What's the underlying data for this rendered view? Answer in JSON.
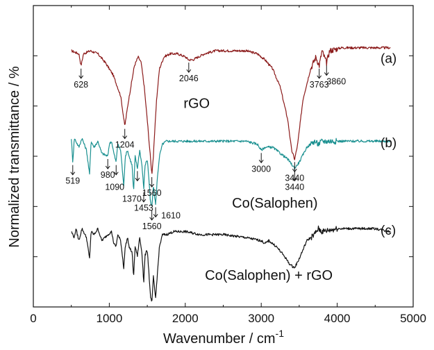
{
  "chart_data": {
    "type": "line",
    "xlabel": "Wavenumber / cm",
    "xlabel_superscript": "-1",
    "ylabel": "Normalized transmittance / %",
    "xlim": [
      0,
      5000
    ],
    "x_ticks": [
      "0",
      "1000",
      "2000",
      "3000",
      "4000",
      "5000"
    ],
    "y_tick_labels": "none",
    "legend": "none",
    "grid": false,
    "series": [
      {
        "name": "rGO",
        "panel": "(a)",
        "color": "#8b1a1a",
        "baseline": 0.85,
        "points": [
          [
            500,
            0.85
          ],
          [
            600,
            0.84
          ],
          [
            628,
            0.8
          ],
          [
            660,
            0.84
          ],
          [
            750,
            0.85
          ],
          [
            850,
            0.84
          ],
          [
            950,
            0.81
          ],
          [
            1050,
            0.77
          ],
          [
            1150,
            0.7
          ],
          [
            1204,
            0.6
          ],
          [
            1250,
            0.68
          ],
          [
            1330,
            0.8
          ],
          [
            1380,
            0.83
          ],
          [
            1420,
            0.81
          ],
          [
            1460,
            0.73
          ],
          [
            1500,
            0.62
          ],
          [
            1540,
            0.5
          ],
          [
            1560,
            0.44
          ],
          [
            1580,
            0.5
          ],
          [
            1620,
            0.68
          ],
          [
            1660,
            0.79
          ],
          [
            1720,
            0.83
          ],
          [
            1800,
            0.84
          ],
          [
            1900,
            0.84
          ],
          [
            2000,
            0.83
          ],
          [
            2046,
            0.82
          ],
          [
            2100,
            0.82
          ],
          [
            2250,
            0.84
          ],
          [
            2400,
            0.85
          ],
          [
            2600,
            0.85
          ],
          [
            2800,
            0.85
          ],
          [
            2950,
            0.84
          ],
          [
            3050,
            0.82
          ],
          [
            3150,
            0.79
          ],
          [
            3250,
            0.73
          ],
          [
            3350,
            0.62
          ],
          [
            3400,
            0.52
          ],
          [
            3440,
            0.49
          ],
          [
            3480,
            0.54
          ],
          [
            3550,
            0.69
          ],
          [
            3650,
            0.79
          ],
          [
            3720,
            0.83
          ],
          [
            3763,
            0.8
          ],
          [
            3800,
            0.85
          ],
          [
            3860,
            0.81
          ],
          [
            3900,
            0.85
          ],
          [
            4050,
            0.86
          ],
          [
            4200,
            0.86
          ],
          [
            4400,
            0.86
          ],
          [
            4600,
            0.86
          ],
          [
            4700,
            0.86
          ]
        ],
        "annotations": [
          {
            "text": "628",
            "x": 628
          },
          {
            "text": "1204",
            "x": 1204
          },
          {
            "text": "1560",
            "x": 1560
          },
          {
            "text": "2046",
            "x": 2046
          },
          {
            "text": "3440",
            "x": 3440
          },
          {
            "text": "3763",
            "x": 3763
          },
          {
            "text": "3860",
            "x": 3860
          }
        ]
      },
      {
        "name": "Co(Salophen)",
        "panel": "(b)",
        "color": "#1a9090",
        "baseline": 0.55,
        "points": [
          [
            500,
            0.56
          ],
          [
            519,
            0.48
          ],
          [
            540,
            0.56
          ],
          [
            600,
            0.53
          ],
          [
            640,
            0.56
          ],
          [
            700,
            0.52
          ],
          [
            740,
            0.44
          ],
          [
            760,
            0.55
          ],
          [
            800,
            0.53
          ],
          [
            850,
            0.55
          ],
          [
            900,
            0.51
          ],
          [
            980,
            0.5
          ],
          [
            1000,
            0.54
          ],
          [
            1030,
            0.55
          ],
          [
            1060,
            0.51
          ],
          [
            1090,
            0.48
          ],
          [
            1110,
            0.54
          ],
          [
            1150,
            0.52
          ],
          [
            1190,
            0.4
          ],
          [
            1210,
            0.5
          ],
          [
            1240,
            0.52
          ],
          [
            1260,
            0.5
          ],
          [
            1300,
            0.47
          ],
          [
            1320,
            0.38
          ],
          [
            1340,
            0.5
          ],
          [
            1370,
            0.46
          ],
          [
            1400,
            0.52
          ],
          [
            1430,
            0.47
          ],
          [
            1453,
            0.39
          ],
          [
            1470,
            0.47
          ],
          [
            1500,
            0.49
          ],
          [
            1520,
            0.43
          ],
          [
            1540,
            0.35
          ],
          [
            1560,
            0.33
          ],
          [
            1580,
            0.4
          ],
          [
            1600,
            0.36
          ],
          [
            1610,
            0.34
          ],
          [
            1630,
            0.42
          ],
          [
            1660,
            0.5
          ],
          [
            1700,
            0.54
          ],
          [
            1750,
            0.55
          ],
          [
            1850,
            0.55
          ],
          [
            2000,
            0.55
          ],
          [
            2200,
            0.55
          ],
          [
            2500,
            0.55
          ],
          [
            2800,
            0.55
          ],
          [
            2950,
            0.54
          ],
          [
            3000,
            0.52
          ],
          [
            3050,
            0.53
          ],
          [
            3150,
            0.53
          ],
          [
            3250,
            0.51
          ],
          [
            3350,
            0.49
          ],
          [
            3440,
            0.46
          ],
          [
            3500,
            0.48
          ],
          [
            3600,
            0.53
          ],
          [
            3700,
            0.55
          ],
          [
            3750,
            0.54
          ],
          [
            3800,
            0.55
          ],
          [
            4000,
            0.55
          ],
          [
            4300,
            0.55
          ],
          [
            4700,
            0.55
          ]
        ],
        "annotations": [
          {
            "text": "519",
            "x": 519
          },
          {
            "text": "980",
            "x": 980
          },
          {
            "text": "1090",
            "x": 1090
          },
          {
            "text": "1370",
            "x": 1370
          },
          {
            "text": "1453",
            "x": 1453
          },
          {
            "text": "1560",
            "x": 1560
          },
          {
            "text": "1610",
            "x": 1610
          },
          {
            "text": "3000",
            "x": 3000
          },
          {
            "text": "3440",
            "x": 3440
          }
        ]
      },
      {
        "name": "Co(Salophen) + rGO",
        "panel": "(c)",
        "color": "#111111",
        "baseline": 0.26,
        "points": [
          [
            500,
            0.25
          ],
          [
            540,
            0.23
          ],
          [
            560,
            0.26
          ],
          [
            600,
            0.22
          ],
          [
            640,
            0.26
          ],
          [
            700,
            0.23
          ],
          [
            740,
            0.16
          ],
          [
            760,
            0.25
          ],
          [
            800,
            0.24
          ],
          [
            850,
            0.26
          ],
          [
            900,
            0.22
          ],
          [
            980,
            0.24
          ],
          [
            1030,
            0.25
          ],
          [
            1060,
            0.21
          ],
          [
            1090,
            0.2
          ],
          [
            1110,
            0.24
          ],
          [
            1150,
            0.22
          ],
          [
            1190,
            0.13
          ],
          [
            1210,
            0.2
          ],
          [
            1240,
            0.23
          ],
          [
            1260,
            0.2
          ],
          [
            1300,
            0.18
          ],
          [
            1320,
            0.1
          ],
          [
            1340,
            0.2
          ],
          [
            1370,
            0.17
          ],
          [
            1400,
            0.23
          ],
          [
            1430,
            0.18
          ],
          [
            1453,
            0.08
          ],
          [
            1470,
            0.17
          ],
          [
            1500,
            0.19
          ],
          [
            1520,
            0.12
          ],
          [
            1540,
            0.04
          ],
          [
            1560,
            0.01
          ],
          [
            1580,
            0.1
          ],
          [
            1600,
            0.05
          ],
          [
            1610,
            0.03
          ],
          [
            1630,
            0.1
          ],
          [
            1660,
            0.2
          ],
          [
            1700,
            0.24
          ],
          [
            1750,
            0.24
          ],
          [
            1850,
            0.25
          ],
          [
            2000,
            0.25
          ],
          [
            2200,
            0.24
          ],
          [
            2500,
            0.24
          ],
          [
            2800,
            0.23
          ],
          [
            3000,
            0.22
          ],
          [
            3050,
            0.21
          ],
          [
            3100,
            0.22
          ],
          [
            3200,
            0.2
          ],
          [
            3300,
            0.17
          ],
          [
            3380,
            0.14
          ],
          [
            3440,
            0.13
          ],
          [
            3500,
            0.16
          ],
          [
            3600,
            0.22
          ],
          [
            3700,
            0.24
          ],
          [
            3750,
            0.26
          ],
          [
            3800,
            0.25
          ],
          [
            4000,
            0.26
          ],
          [
            4300,
            0.26
          ],
          [
            4500,
            0.26
          ],
          [
            4700,
            0.25
          ]
        ],
        "annotations": []
      }
    ]
  }
}
